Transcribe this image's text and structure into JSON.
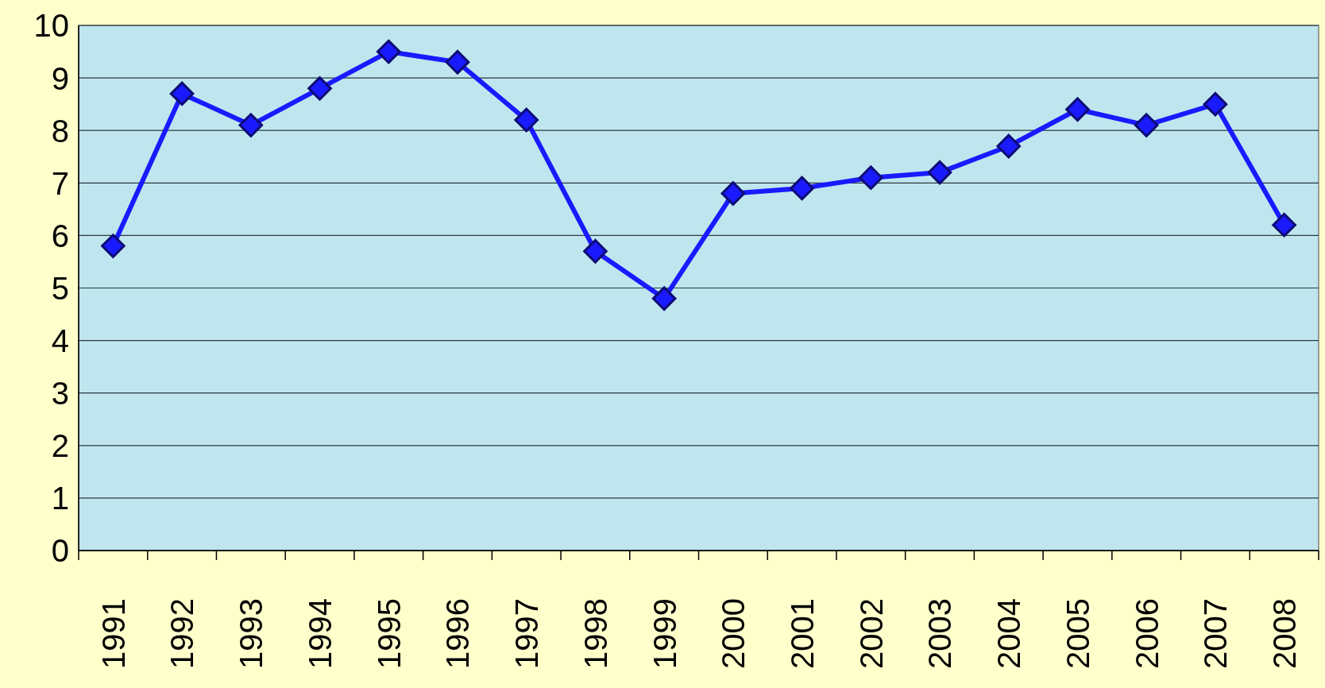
{
  "chart_data": {
    "type": "line",
    "categories": [
      "1991",
      "1992",
      "1993",
      "1994",
      "1995",
      "1996",
      "1997",
      "1998",
      "1999",
      "2000",
      "2001",
      "2002",
      "2003",
      "2004",
      "2005",
      "2006",
      "2007",
      "2008"
    ],
    "series": [
      {
        "color": "#1a1aff",
        "values": [
          5.8,
          8.7,
          8.1,
          8.8,
          9.5,
          9.3,
          8.2,
          5.7,
          4.8,
          6.8,
          6.9,
          7.1,
          7.2,
          7.7,
          8.4,
          8.1,
          8.5,
          6.2
        ]
      }
    ],
    "ylim": [
      0,
      10
    ],
    "yticks": [
      0,
      1,
      2,
      3,
      4,
      5,
      6,
      7,
      8,
      9,
      10
    ],
    "grid": "y",
    "marker": "diamond",
    "line_style": "solid"
  }
}
